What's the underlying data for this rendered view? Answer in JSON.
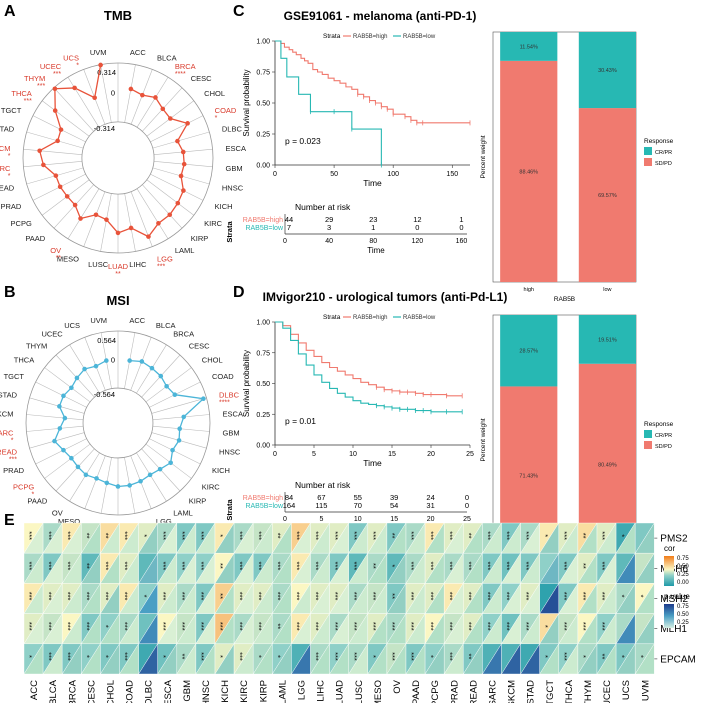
{
  "colors": {
    "tmb_line": "#e8533a",
    "msi_line": "#4cb5d8",
    "high": "#f07a6f",
    "low": "#27b8b3",
    "sig_red": "#d93a2b",
    "text": "#222222",
    "grid": "#bbbbbb"
  },
  "panels": {
    "A": {
      "letter": "A",
      "title": "TMB",
      "max_label": "0.314",
      "mid_label": "0",
      "min_label": "-0.314"
    },
    "B": {
      "letter": "B",
      "title": "MSI",
      "max_label": "0.564",
      "mid_label": "0",
      "min_label": "-0.564"
    },
    "C": {
      "letter": "C",
      "title": "GSE91061 - melanoma (anti-PD-1)"
    },
    "D": {
      "letter": "D",
      "title": "IMvigor210 - urological tumors (anti-Pd-L1)"
    },
    "E": {
      "letter": "E"
    }
  },
  "cancers": [
    "ACC",
    "BLCA",
    "BRCA",
    "CESC",
    "CHOL",
    "COAD",
    "DLBC",
    "ESCA",
    "GBM",
    "HNSC",
    "KICH",
    "KIRC",
    "KIRP",
    "LAML",
    "LGG",
    "LIHC",
    "LUAD",
    "LUSC",
    "MESO",
    "OV",
    "PAAD",
    "PCPG",
    "PRAD",
    "READ",
    "SARC",
    "SKCM",
    "STAD",
    "TGCT",
    "THCA",
    "THYM",
    "UCEC",
    "UCS",
    "UVM"
  ],
  "chart_data": [
    {
      "id": "tmb_radar",
      "type": "radar",
      "title": "TMB",
      "categories": [
        "ACC",
        "BLCA",
        "BRCA",
        "CESC",
        "CHOL",
        "COAD",
        "DLBC",
        "ESCA",
        "GBM",
        "HNSC",
        "KICH",
        "KIRC",
        "KIRP",
        "LAML",
        "LGG",
        "LIHC",
        "LUAD",
        "LUSC",
        "MESO",
        "OV",
        "PAAD",
        "PCPG",
        "PRAD",
        "READ",
        "SARC",
        "SKCM",
        "STAD",
        "TGCT",
        "THCA",
        "THYM",
        "UCEC",
        "UCS",
        "UVM"
      ],
      "values": [
        0.05,
        0.02,
        0.06,
        0.01,
        0.0,
        0.13,
        -0.04,
        0.0,
        0.01,
        0.0,
        0.08,
        0.1,
        0.12,
        0.12,
        0.2,
        0.06,
        0.1,
        -0.03,
        -0.05,
        0.06,
        -0.02,
        -0.02,
        -0.01,
        -0.01,
        0.1,
        0.14,
        -0.03,
        -0.02,
        0.14,
        0.3,
        0.18,
        -0.01,
        0.31
      ],
      "significance": {
        "BRCA": "****",
        "COAD": "*",
        "LGG": "***",
        "LUAD": "**",
        "OV": "**",
        "SARC": "*",
        "SKCM": "*",
        "THCA": "***",
        "THYM": "***",
        "UCEC": "***",
        "UCS": "*"
      },
      "rmin": -0.314,
      "rmax": 0.314,
      "axis_labels": [
        "0.314",
        "0",
        "-0.314"
      ]
    },
    {
      "id": "msi_radar",
      "type": "radar",
      "title": "MSI",
      "categories": [
        "ACC",
        "BLCA",
        "BRCA",
        "CESC",
        "CHOL",
        "COAD",
        "DLBC",
        "ESCA",
        "GBM",
        "HNSC",
        "KICH",
        "KIRC",
        "KIRP",
        "LAML",
        "LGG",
        "LIHC",
        "LUAD",
        "LUSC",
        "MESO",
        "OV",
        "PAAD",
        "PCPG",
        "PRAD",
        "READ",
        "SARC",
        "SKCM",
        "STAD",
        "TGCT",
        "THCA",
        "THYM",
        "UCEC",
        "UCS",
        "UVM"
      ],
      "values": [
        0.0,
        0.05,
        0.02,
        0.0,
        -0.05,
        0.0,
        0.5,
        0.05,
        -0.03,
        0.0,
        -0.05,
        0.05,
        -0.02,
        -0.05,
        -0.02,
        0.0,
        0.0,
        -0.05,
        -0.08,
        -0.05,
        -0.08,
        -0.1,
        -0.05,
        0.05,
        -0.1,
        -0.2,
        -0.05,
        -0.05,
        -0.1,
        -0.05,
        0.0,
        -0.05,
        0.0
      ],
      "significance": {
        "DLBC": "****",
        "PCPG": "*",
        "READ": "***",
        "SARC": "*"
      },
      "rmin": -0.564,
      "rmax": 0.564,
      "axis_labels": [
        "0.564",
        "0",
        "-0.564"
      ]
    },
    {
      "id": "km_gse91061",
      "type": "line",
      "title": "GSE91061 - melanoma (anti-PD-1)",
      "xlabel": "Time",
      "ylabel": "Survival probability",
      "xlim": [
        0,
        165
      ],
      "ylim": [
        0,
        1
      ],
      "xticks": [
        0,
        50,
        100,
        150
      ],
      "yticks": [
        "0.00",
        "0.25",
        "0.50",
        "0.75",
        "1.00"
      ],
      "legend_title": "Strata",
      "series": [
        {
          "name": "RAB5B=high",
          "x": [
            0,
            5,
            8,
            12,
            15,
            18,
            22,
            25,
            28,
            32,
            36,
            40,
            45,
            50,
            55,
            60,
            65,
            70,
            75,
            80,
            85,
            90,
            95,
            100,
            110,
            115,
            120,
            125,
            165
          ],
          "y": [
            1.0,
            0.98,
            0.95,
            0.93,
            0.91,
            0.89,
            0.86,
            0.84,
            0.82,
            0.77,
            0.75,
            0.73,
            0.7,
            0.68,
            0.66,
            0.63,
            0.61,
            0.57,
            0.55,
            0.52,
            0.5,
            0.47,
            0.45,
            0.41,
            0.39,
            0.36,
            0.34,
            0.34,
            0.34
          ]
        },
        {
          "name": "RAB5B=low",
          "x": [
            0,
            5,
            10,
            20,
            30,
            50,
            65,
            90
          ],
          "y": [
            1.0,
            0.86,
            0.71,
            0.57,
            0.43,
            0.43,
            0.29,
            0.0
          ]
        }
      ],
      "pvalue": "p = 0.023",
      "risk_title": "Number at risk",
      "risk_strata_label": "Strata",
      "risk_times": [
        "0",
        "40",
        "80",
        "120",
        "160"
      ],
      "risk": [
        {
          "name": "RAB5B=high",
          "counts": [
            "44",
            "29",
            "23",
            "12",
            "1"
          ]
        },
        {
          "name": "RAB5B=low",
          "counts": [
            "7",
            "3",
            "1",
            "0",
            "0"
          ]
        }
      ]
    },
    {
      "id": "bar_gse91061",
      "type": "bar",
      "ylabel": "Percent weight",
      "xlabel": "RAB5B",
      "categories": [
        "high",
        "low"
      ],
      "series": [
        {
          "name": "SD/PD",
          "values": [
            88.46,
            69.57
          ],
          "labels": [
            "88.46%",
            "69.57%"
          ]
        },
        {
          "name": "CR/PR",
          "values": [
            11.54,
            30.43
          ],
          "labels": [
            "11.54%",
            "30.43%"
          ]
        }
      ],
      "legend_title": "Response",
      "legend": [
        "CR/PR",
        "SD/PD"
      ]
    },
    {
      "id": "km_imvigor210",
      "type": "line",
      "title": "IMvigor210 - urological tumors (anti-Pd-L1)",
      "xlabel": "Time",
      "ylabel": "Survival probability",
      "xlim": [
        0,
        25
      ],
      "ylim": [
        0,
        1
      ],
      "xticks": [
        0,
        5,
        10,
        15,
        20,
        25
      ],
      "yticks": [
        "0.00",
        "0.25",
        "0.50",
        "0.75",
        "1.00"
      ],
      "legend_title": "Strata",
      "series": [
        {
          "name": "RAB5B=high",
          "x": [
            0,
            1,
            2,
            3,
            4,
            5,
            6,
            7,
            8,
            9,
            10,
            11,
            12,
            13,
            14,
            15,
            16,
            17,
            18,
            19,
            20,
            22,
            24
          ],
          "y": [
            1.0,
            0.97,
            0.9,
            0.83,
            0.77,
            0.72,
            0.67,
            0.63,
            0.6,
            0.57,
            0.54,
            0.51,
            0.49,
            0.47,
            0.45,
            0.44,
            0.43,
            0.43,
            0.42,
            0.41,
            0.41,
            0.4,
            0.4
          ]
        },
        {
          "name": "RAB5B=low",
          "x": [
            0,
            1,
            2,
            3,
            4,
            5,
            6,
            7,
            8,
            9,
            10,
            11,
            12,
            13,
            14,
            15,
            16,
            17,
            18,
            19,
            20,
            22,
            24
          ],
          "y": [
            1.0,
            0.95,
            0.85,
            0.74,
            0.65,
            0.57,
            0.51,
            0.46,
            0.42,
            0.39,
            0.36,
            0.34,
            0.33,
            0.32,
            0.31,
            0.3,
            0.29,
            0.29,
            0.28,
            0.28,
            0.27,
            0.27,
            0.27
          ]
        }
      ],
      "pvalue": "p = 0.01",
      "risk_title": "Number at risk",
      "risk_strata_label": "Strata",
      "risk_times": [
        "0",
        "5",
        "10",
        "15",
        "20",
        "25"
      ],
      "risk": [
        {
          "name": "RAB5B=high",
          "counts": [
            "84",
            "67",
            "55",
            "39",
            "24",
            "0"
          ]
        },
        {
          "name": "RAB5B=low",
          "counts": [
            "164",
            "115",
            "70",
            "54",
            "31",
            "0"
          ]
        }
      ]
    },
    {
      "id": "bar_imvigor210",
      "type": "bar",
      "ylabel": "Percent weight",
      "xlabel": "RAB5B",
      "categories": [
        "high",
        "low"
      ],
      "series": [
        {
          "name": "SD/PD",
          "values": [
            71.43,
            80.49
          ],
          "labels": [
            "71.43%",
            "80.49%"
          ]
        },
        {
          "name": "CR/PR",
          "values": [
            28.57,
            19.51
          ],
          "labels": [
            "28.57%",
            "19.51%"
          ]
        }
      ],
      "legend_title": "Response",
      "legend": [
        "CR/PR",
        "SD/PD"
      ]
    },
    {
      "id": "corr_heatmap",
      "type": "heatmap",
      "rows": [
        "PMS2",
        "MSH6",
        "MSH2",
        "MLH1",
        "EPCAM"
      ],
      "columns": [
        "ACC",
        "BLCA",
        "BRCA",
        "CESC",
        "CHOL",
        "COAD",
        "DLBC",
        "ESCA",
        "GBM",
        "HNSC",
        "KICH",
        "KIRC",
        "KIRP",
        "LAML",
        "LGG",
        "LIHC",
        "LUAD",
        "LUSC",
        "MESO",
        "OV",
        "PAAD",
        "PCPG",
        "PRAD",
        "READ",
        "SARC",
        "SKCM",
        "STAD",
        "TGCT",
        "THCA",
        "THYM",
        "UCEC",
        "UCS",
        "UVM"
      ],
      "cor": [
        [
          0.55,
          0.4,
          0.6,
          0.45,
          0.65,
          0.6,
          0.5,
          0.4,
          0.3,
          0.3,
          0.6,
          0.4,
          0.45,
          0.5,
          0.7,
          0.5,
          0.5,
          0.3,
          0.5,
          0.3,
          0.4,
          0.6,
          0.5,
          0.5,
          0.4,
          0.3,
          0.4,
          0.6,
          0.5,
          0.65,
          0.5,
          0.1,
          0.3
        ],
        [
          0.4,
          0.3,
          0.45,
          0.2,
          0.6,
          0.5,
          0.2,
          0.3,
          0.35,
          0.35,
          0.55,
          0.3,
          0.3,
          0.4,
          0.6,
          0.4,
          0.3,
          0.2,
          0.4,
          0.2,
          0.4,
          0.5,
          0.4,
          0.4,
          0.3,
          0.25,
          0.3,
          0.35,
          0.3,
          0.5,
          0.3,
          0.2,
          0.45
        ],
        [
          0.6,
          0.5,
          0.5,
          0.4,
          0.5,
          0.6,
          0.35,
          0.5,
          0.4,
          0.3,
          0.7,
          0.5,
          0.5,
          0.4,
          0.55,
          0.5,
          0.5,
          0.4,
          0.45,
          0.3,
          0.5,
          0.5,
          0.6,
          0.5,
          0.3,
          0.35,
          0.5,
          0.05,
          0.3,
          0.6,
          0.5,
          0.4,
          0.55
        ],
        [
          0.5,
          0.45,
          0.55,
          0.3,
          0.35,
          0.4,
          0.25,
          0.55,
          0.45,
          0.3,
          0.75,
          0.4,
          0.45,
          0.4,
          0.6,
          0.5,
          0.4,
          0.45,
          0.5,
          0.4,
          0.5,
          0.55,
          0.45,
          0.5,
          0.35,
          0.25,
          0.4,
          0.65,
          0.45,
          0.55,
          0.35,
          0.4,
          0.45
        ],
        [
          0.35,
          0.3,
          0.3,
          0.35,
          0.3,
          0.3,
          0.1,
          0.25,
          0.4,
          0.3,
          0.5,
          0.5,
          0.4,
          0.35,
          0.15,
          0.4,
          0.35,
          0.4,
          0.3,
          0.45,
          0.3,
          0.35,
          0.4,
          0.3,
          0.15,
          0.15,
          0.1,
          0.3,
          0.35,
          0.4,
          0.3,
          0.3,
          0.4
        ]
      ],
      "pvalue": [
        [
          0.05,
          0.05,
          0.05,
          0.2,
          0.1,
          0.1,
          0.3,
          0.05,
          0.1,
          0.1,
          0.3,
          0.05,
          0.1,
          0.2,
          0.05,
          0.1,
          0.05,
          0.1,
          0.1,
          0.2,
          0.1,
          0.2,
          0.05,
          0.2,
          0.1,
          0.1,
          0.05,
          0.3,
          0.1,
          0.2,
          0.1,
          0.2,
          0.3
        ],
        [
          0.1,
          0.05,
          0.1,
          0.3,
          0.2,
          0.1,
          0.4,
          0.1,
          0.05,
          0.05,
          0.3,
          0.05,
          0.1,
          0.2,
          0.05,
          0.1,
          0.05,
          0.1,
          0.2,
          0.3,
          0.1,
          0.2,
          0.05,
          0.2,
          0.1,
          0.05,
          0.1,
          0.4,
          0.05,
          0.2,
          0.05,
          0.6,
          0.3
        ],
        [
          0.1,
          0.05,
          0.1,
          0.2,
          0.3,
          0.1,
          0.5,
          0.1,
          0.1,
          0.05,
          0.2,
          0.05,
          0.1,
          0.2,
          0.1,
          0.05,
          0.05,
          0.1,
          0.1,
          0.3,
          0.1,
          0.2,
          0.05,
          0.2,
          0.1,
          0.05,
          0.05,
          0.9,
          0.05,
          0.2,
          0.1,
          0.3,
          0.2
        ],
        [
          0.05,
          0.05,
          0.1,
          0.2,
          0.2,
          0.1,
          0.6,
          0.05,
          0.1,
          0.05,
          0.2,
          0.05,
          0.1,
          0.2,
          0.05,
          0.1,
          0.05,
          0.1,
          0.2,
          0.2,
          0.1,
          0.2,
          0.05,
          0.2,
          0.1,
          0.05,
          0.1,
          0.3,
          0.1,
          0.2,
          0.1,
          0.6,
          0.3
        ],
        [
          0.2,
          0.1,
          0.3,
          0.2,
          0.3,
          0.2,
          0.8,
          0.3,
          0.1,
          0.2,
          0.3,
          0.1,
          0.2,
          0.3,
          0.7,
          0.2,
          0.2,
          0.1,
          0.2,
          0.2,
          0.2,
          0.3,
          0.1,
          0.3,
          0.7,
          0.8,
          0.8,
          0.2,
          0.1,
          0.3,
          0.2,
          0.3,
          0.2
        ]
      ],
      "stars": [
        [
          "***",
          "***",
          "***",
          "**",
          "**",
          "***",
          "*",
          "***",
          "***",
          "***",
          "*",
          "***",
          "***",
          "**",
          "***",
          "***",
          "***",
          "***",
          "***",
          "**",
          "***",
          "***",
          "***",
          "**",
          "***",
          "***",
          "***",
          "*",
          "***",
          "**",
          "***",
          "*",
          ""
        ],
        [
          "***",
          "***",
          "***",
          "**",
          "***",
          "***",
          "",
          "***",
          "***",
          "***",
          "**",
          "***",
          "***",
          "***",
          "***",
          "***",
          "***",
          "***",
          "**",
          "*",
          "***",
          "***",
          "***",
          "***",
          "***",
          "***",
          "***",
          "",
          "***",
          "**",
          "***",
          "",
          ""
        ],
        [
          "***",
          "***",
          "***",
          "***",
          "***",
          "***",
          "*",
          "***",
          "***",
          "***",
          "**",
          "***",
          "***",
          "***",
          "***",
          "***",
          "***",
          "***",
          "***",
          "**",
          "***",
          "***",
          "***",
          "***",
          "***",
          "***",
          "***",
          "",
          "***",
          "***",
          "***",
          "*",
          "*"
        ],
        [
          "***",
          "***",
          "***",
          "***",
          "*",
          "***",
          "",
          "***",
          "***",
          "***",
          "***",
          "***",
          "***",
          "**",
          "***",
          "***",
          "***",
          "***",
          "***",
          "***",
          "***",
          "***",
          "***",
          "***",
          "***",
          "***",
          "***",
          "*",
          "***",
          "***",
          "***",
          "",
          ""
        ],
        [
          "*",
          "***",
          "***",
          "*",
          "*",
          "***",
          "",
          "*",
          "**",
          "***",
          "*",
          "***",
          "*",
          "*",
          "",
          "***",
          "***",
          "***",
          "*",
          "***",
          "***",
          "*",
          "***",
          "**",
          "",
          "",
          "",
          "*",
          "***",
          "*",
          "**",
          "*",
          "*"
        ]
      ],
      "legend_cor_title": "cor",
      "legend_cor_ticks": [
        "0.75",
        "0.50",
        "0.25",
        "0.00"
      ],
      "legend_p_title": "p.value",
      "legend_p_ticks": [
        "0.75",
        "0.50",
        "0.25"
      ]
    }
  ]
}
